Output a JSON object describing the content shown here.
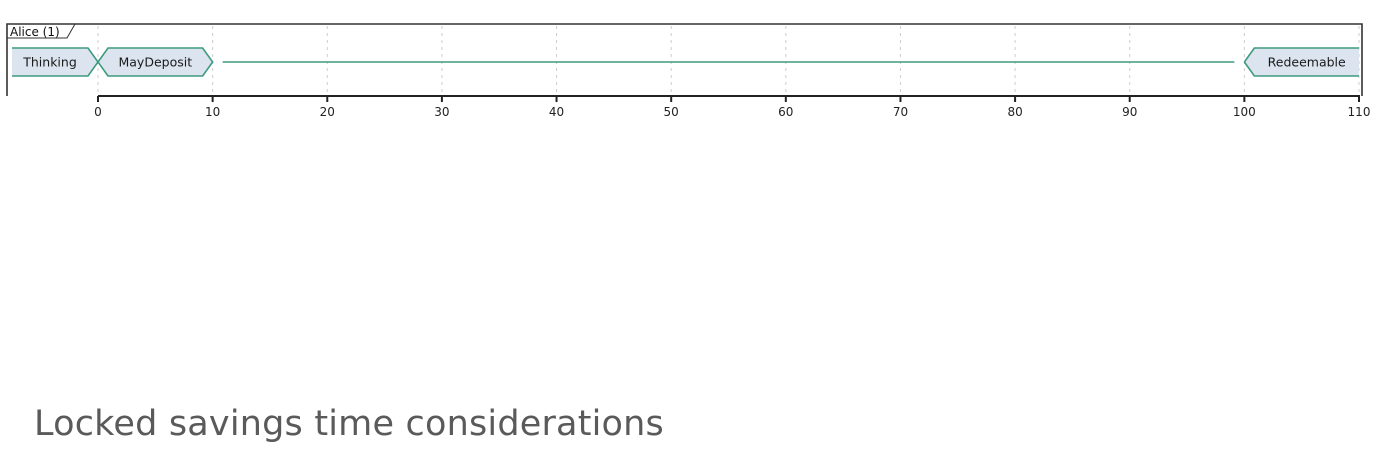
{
  "diagram": {
    "type": "timing",
    "participant": {
      "label": "Alice (1)"
    },
    "time_axis": {
      "min": 0,
      "max": 110,
      "ticks": [
        "0",
        "10",
        "20",
        "30",
        "40",
        "50",
        "60",
        "70",
        "80",
        "90",
        "100",
        "110"
      ]
    },
    "states": [
      {
        "label": "Thinking",
        "start": null,
        "end": 0,
        "labeled": true
      },
      {
        "label": "MayDeposit",
        "start": 0,
        "end": 10,
        "labeled": true
      },
      {
        "label": "",
        "start": 10,
        "end": 100,
        "labeled": false
      },
      {
        "label": "Redeemable",
        "start": 100,
        "end": 110,
        "labeled": true
      }
    ],
    "colors": {
      "state_fill": "#dbe4ef",
      "state_stroke": "#3e9a7e",
      "frame": "#333333",
      "grid": "#cccccc"
    }
  },
  "section": {
    "title": "Locked savings time considerations"
  }
}
